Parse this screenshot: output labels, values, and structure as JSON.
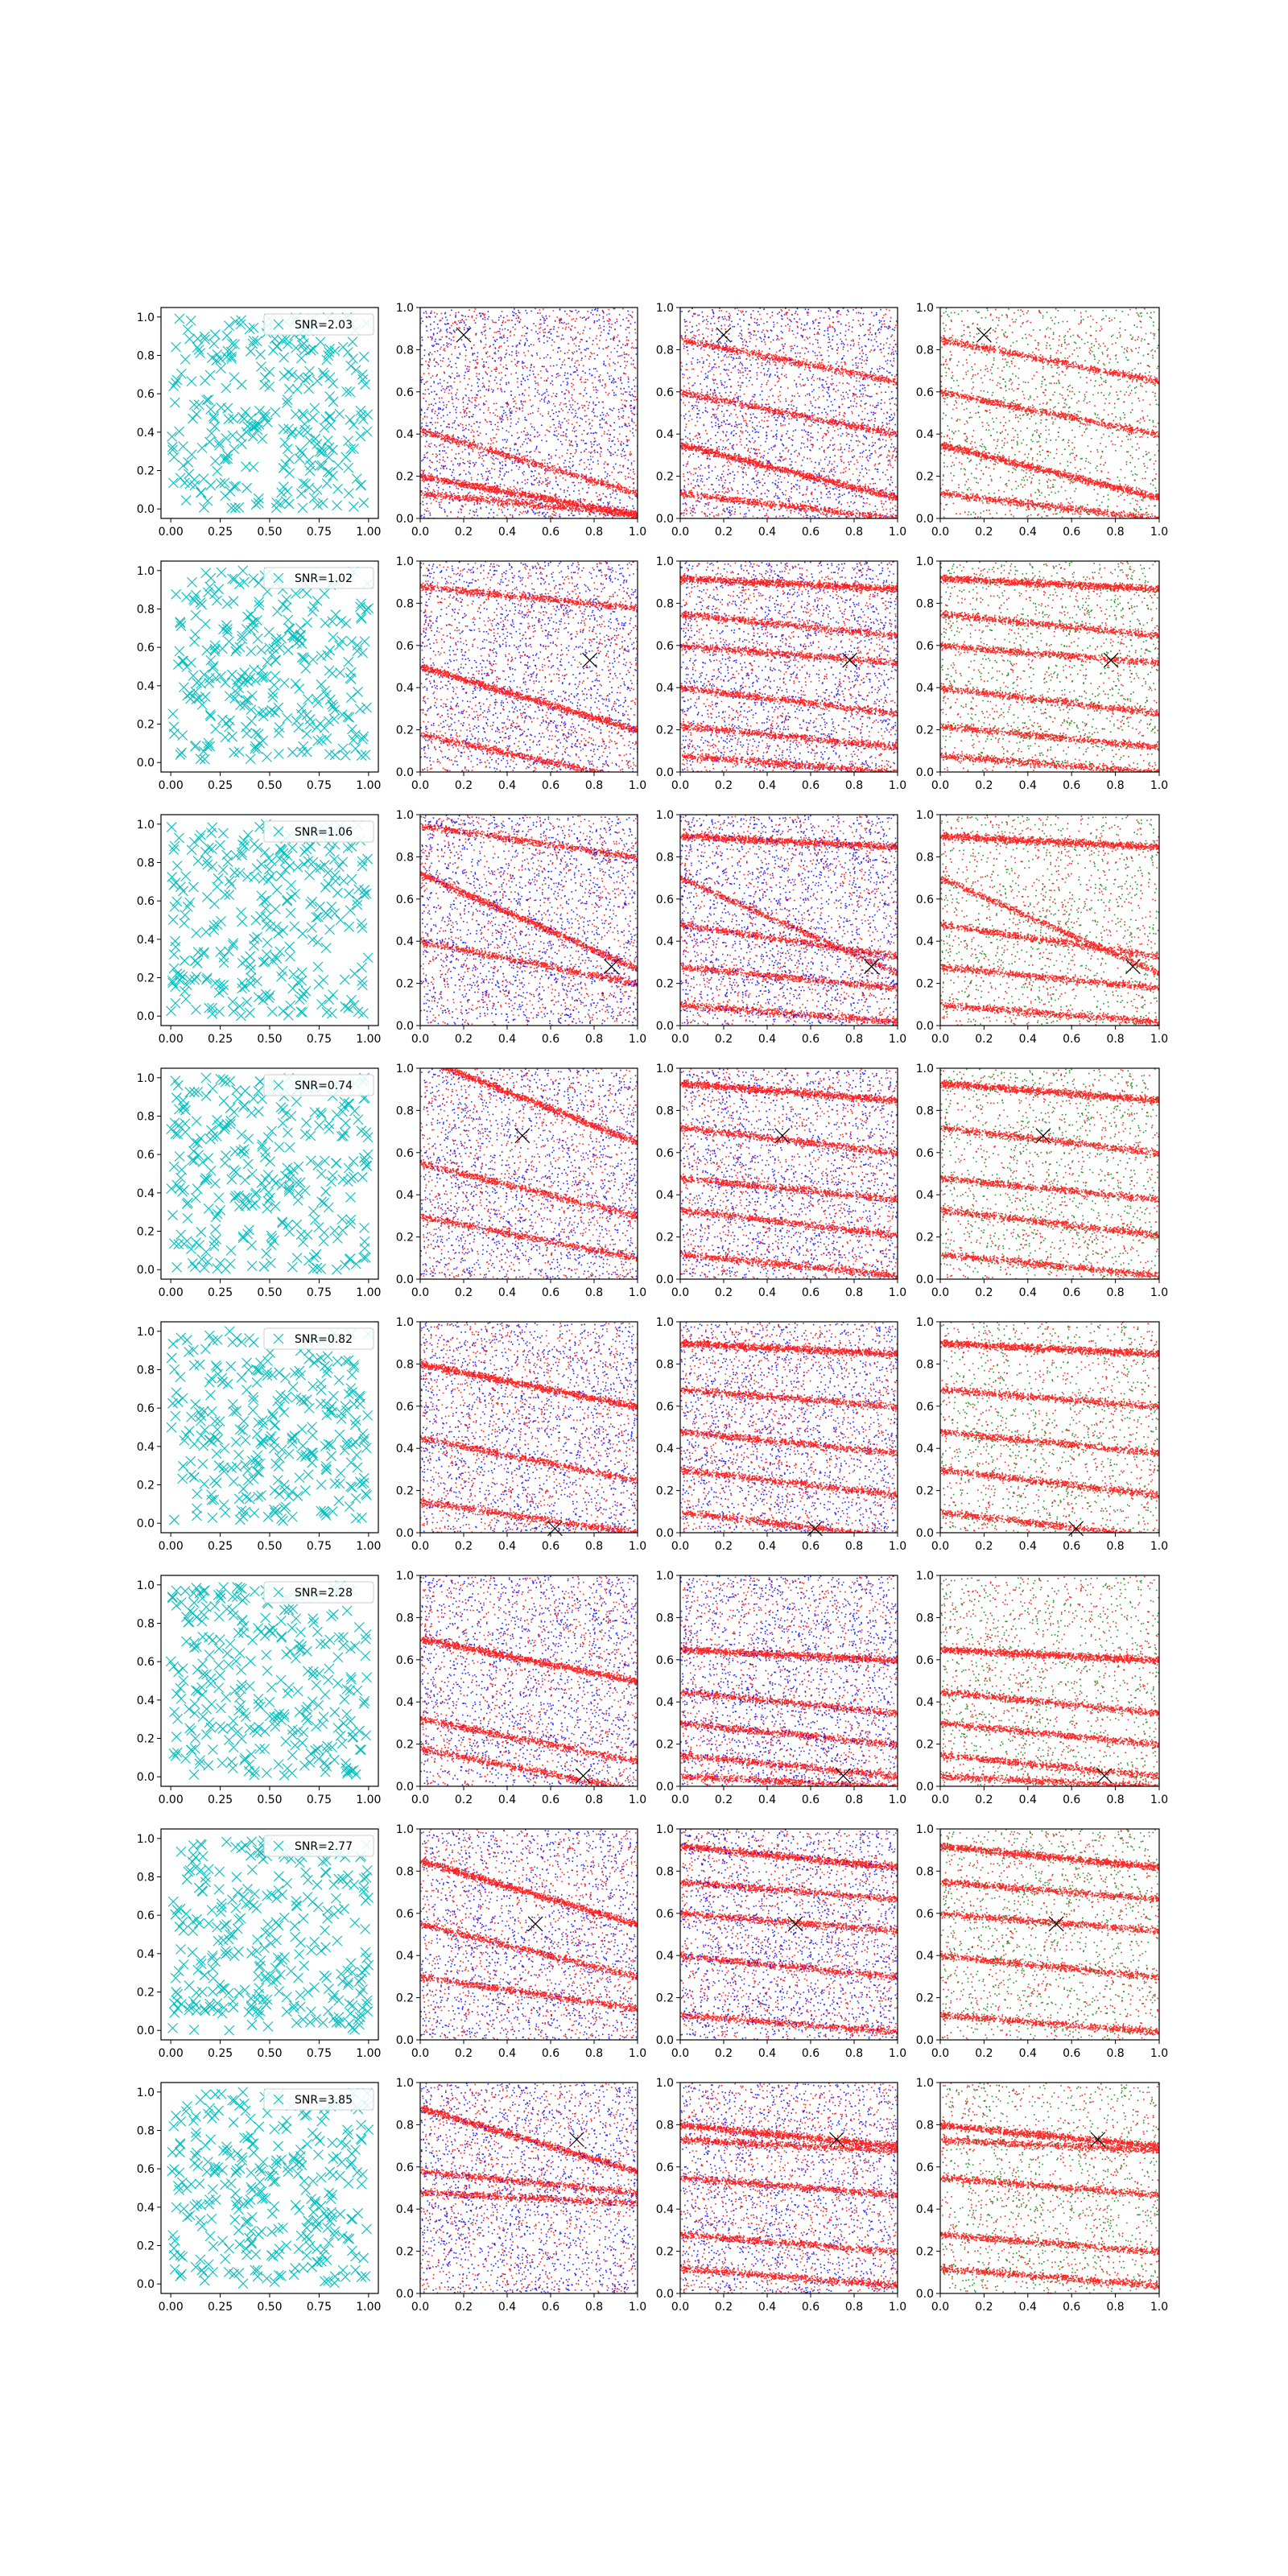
{
  "figure": {
    "rows": 8,
    "cols": 4,
    "colors": {
      "cyan": "#00bfbf",
      "red": "#ff0000",
      "blue": "#0000ff",
      "green": "#008000",
      "marker": "#000000",
      "frame": "#000000"
    }
  },
  "chart_data": {
    "type": "scatter",
    "grid": false,
    "panels_per_row": [
      {
        "column": 1,
        "style": "x-markers",
        "color": "#00bfbf",
        "xlim": [
          0,
          1
        ],
        "ylim": [
          0,
          1
        ],
        "xticks": [
          "0.00",
          "0.25",
          "0.50",
          "0.75",
          "1.00"
        ],
        "yticks": [
          "0.0",
          "0.2",
          "0.4",
          "0.6",
          "0.8",
          "1.0"
        ],
        "legend_placement": "upper-right"
      },
      {
        "column": 2,
        "style": "dots",
        "colors": [
          "#ff0000",
          "#0000ff"
        ],
        "xlim": [
          0,
          1
        ],
        "ylim": [
          0,
          1
        ],
        "xticks": [
          "0.0",
          "0.2",
          "0.4",
          "0.6",
          "0.8",
          "1.0"
        ],
        "yticks": [
          "0.0",
          "0.2",
          "0.4",
          "0.6",
          "0.8",
          "1.0"
        ]
      },
      {
        "column": 3,
        "style": "dots",
        "colors": [
          "#ff0000",
          "#0000ff"
        ],
        "xlim": [
          0,
          1
        ],
        "ylim": [
          0,
          1
        ],
        "xticks": [
          "0.0",
          "0.2",
          "0.4",
          "0.6",
          "0.8",
          "1.0"
        ],
        "yticks": [
          "0.0",
          "0.2",
          "0.4",
          "0.6",
          "0.8",
          "1.0"
        ]
      },
      {
        "column": 4,
        "style": "dots",
        "colors": [
          "#ff0000",
          "#008000"
        ],
        "xlim": [
          0,
          1
        ],
        "ylim": [
          0,
          1
        ],
        "xticks": [
          "0.0",
          "0.2",
          "0.4",
          "0.6",
          "0.8",
          "1.0"
        ],
        "yticks": [
          "0.0",
          "0.2",
          "0.4",
          "0.6",
          "0.8",
          "1.0"
        ]
      }
    ],
    "rows": [
      {
        "snr_label": "SNR=2.03",
        "marker": [
          0.2,
          0.87
        ],
        "stripes": [
          [
            0.2,
            -0.18
          ],
          [
            0.42,
            -0.3
          ],
          [
            0.12,
            -0.1
          ]
        ],
        "stripes_b": [
          [
            0.35,
            -0.25
          ],
          [
            0.12,
            -0.12
          ],
          [
            0.6,
            -0.2
          ],
          [
            0.85,
            -0.2
          ]
        ]
      },
      {
        "snr_label": "SNR=1.02",
        "marker": [
          0.78,
          0.53
        ],
        "stripes": [
          [
            0.5,
            -0.3
          ],
          [
            0.18,
            -0.22
          ],
          [
            0.88,
            -0.1
          ]
        ],
        "stripes_b": [
          [
            0.92,
            -0.05
          ],
          [
            0.75,
            -0.1
          ],
          [
            0.6,
            -0.08
          ],
          [
            0.4,
            -0.12
          ],
          [
            0.22,
            -0.1
          ],
          [
            0.08,
            -0.08
          ]
        ]
      },
      {
        "snr_label": "SNR=1.06",
        "marker": [
          0.88,
          0.28
        ],
        "stripes": [
          [
            0.72,
            -0.45
          ],
          [
            0.4,
            -0.2
          ],
          [
            0.95,
            -0.15
          ]
        ],
        "stripes_b": [
          [
            0.9,
            -0.05
          ],
          [
            0.7,
            -0.45
          ],
          [
            0.48,
            -0.15
          ],
          [
            0.28,
            -0.1
          ],
          [
            0.1,
            -0.08
          ]
        ]
      },
      {
        "snr_label": "SNR=0.74",
        "marker": [
          0.47,
          0.68
        ],
        "stripes": [
          [
            1.05,
            -0.4
          ],
          [
            0.55,
            -0.25
          ],
          [
            0.3,
            -0.2
          ]
        ],
        "stripes_b": [
          [
            0.93,
            -0.08
          ],
          [
            0.72,
            -0.12
          ],
          [
            0.48,
            -0.1
          ],
          [
            0.33,
            -0.12
          ],
          [
            0.12,
            -0.1
          ]
        ]
      },
      {
        "snr_label": "SNR=0.82",
        "marker": [
          0.62,
          0.02
        ],
        "stripes": [
          [
            0.8,
            -0.2
          ],
          [
            0.45,
            -0.2
          ],
          [
            0.15,
            -0.15
          ]
        ],
        "stripes_b": [
          [
            0.9,
            -0.05
          ],
          [
            0.68,
            -0.08
          ],
          [
            0.48,
            -0.1
          ],
          [
            0.3,
            -0.12
          ],
          [
            0.1,
            -0.12
          ]
        ]
      },
      {
        "snr_label": "SNR=2.28",
        "marker": [
          0.75,
          0.05
        ],
        "stripes": [
          [
            0.7,
            -0.2
          ],
          [
            0.32,
            -0.2
          ],
          [
            0.18,
            -0.2
          ]
        ],
        "stripes_b": [
          [
            0.65,
            -0.05
          ],
          [
            0.45,
            -0.1
          ],
          [
            0.3,
            -0.1
          ],
          [
            0.15,
            -0.1
          ],
          [
            0.05,
            -0.05
          ]
        ]
      },
      {
        "snr_label": "SNR=2.77",
        "marker": [
          0.53,
          0.55
        ],
        "stripes": [
          [
            0.85,
            -0.3
          ],
          [
            0.55,
            -0.25
          ],
          [
            0.3,
            -0.15
          ]
        ],
        "stripes_b": [
          [
            0.92,
            -0.1
          ],
          [
            0.75,
            -0.08
          ],
          [
            0.6,
            -0.08
          ],
          [
            0.4,
            -0.1
          ],
          [
            0.12,
            -0.08
          ]
        ]
      },
      {
        "snr_label": "SNR=3.85",
        "marker": [
          0.72,
          0.73
        ],
        "stripes": [
          [
            0.88,
            -0.3
          ],
          [
            0.58,
            -0.1
          ],
          [
            0.48,
            -0.05
          ]
        ],
        "stripes_b": [
          [
            0.8,
            -0.1
          ],
          [
            0.73,
            -0.05
          ],
          [
            0.55,
            -0.08
          ],
          [
            0.28,
            -0.08
          ],
          [
            0.12,
            -0.08
          ]
        ]
      }
    ]
  }
}
